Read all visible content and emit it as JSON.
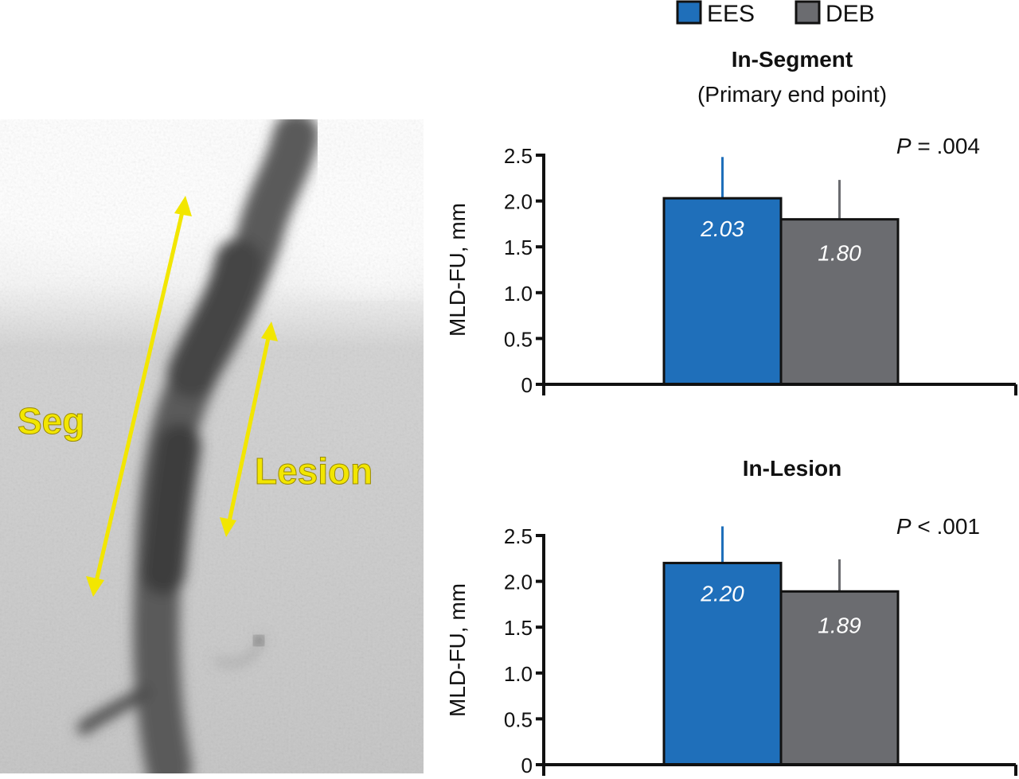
{
  "image": {
    "annotations": {
      "segment": "Seg",
      "lesion": "Lesion"
    },
    "annotation_color": "#f2e600"
  },
  "legend": [
    {
      "label": "EES",
      "color": "#1f6fba"
    },
    {
      "label": "DEB",
      "color": "#6b6c70"
    }
  ],
  "chart_data": [
    {
      "type": "bar",
      "title": "In-Segment",
      "subtitle": "(Primary end point)",
      "ylabel": "MLD-FU, mm",
      "ylim": [
        0,
        2.5
      ],
      "yticks": [
        "0",
        "0.5",
        "1.0",
        "1.5",
        "2.0",
        "2.5"
      ],
      "p_value": {
        "italic": "P",
        "rest": " = .004"
      },
      "series": [
        {
          "name": "EES",
          "value": 2.03,
          "label": "2.03",
          "error_upper": 2.48,
          "color": "#1f6fba"
        },
        {
          "name": "DEB",
          "value": 1.8,
          "label": "1.80",
          "error_upper": 2.23,
          "color": "#6b6c70"
        }
      ]
    },
    {
      "type": "bar",
      "title": "In-Lesion",
      "ylabel": "MLD-FU, mm",
      "ylim": [
        0,
        2.5
      ],
      "yticks": [
        "0",
        "0.5",
        "1.0",
        "1.5",
        "2.0",
        "2.5"
      ],
      "p_value": {
        "italic": "P",
        "rest": " < .001"
      },
      "series": [
        {
          "name": "EES",
          "value": 2.2,
          "label": "2.20",
          "error_upper": 2.6,
          "color": "#1f6fba"
        },
        {
          "name": "DEB",
          "value": 1.89,
          "label": "1.89",
          "error_upper": 2.24,
          "color": "#6b6c70"
        }
      ]
    }
  ]
}
